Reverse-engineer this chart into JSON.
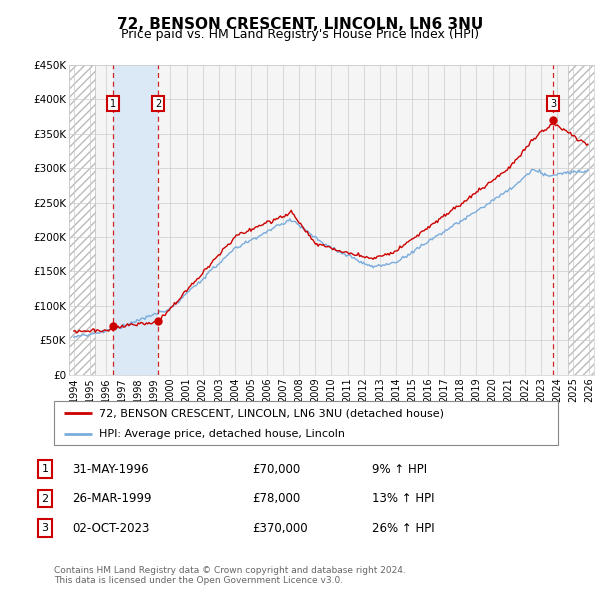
{
  "title": "72, BENSON CRESCENT, LINCOLN, LN6 3NU",
  "subtitle": "Price paid vs. HM Land Registry's House Price Index (HPI)",
  "ylim": [
    0,
    450000
  ],
  "yticks": [
    0,
    50000,
    100000,
    150000,
    200000,
    250000,
    300000,
    350000,
    400000,
    450000
  ],
  "ytick_labels": [
    "£0",
    "£50K",
    "£100K",
    "£150K",
    "£200K",
    "£250K",
    "£300K",
    "£350K",
    "£400K",
    "£450K"
  ],
  "xlim_start": 1993.7,
  "xlim_end": 2026.3,
  "xticks": [
    1994,
    1995,
    1996,
    1997,
    1998,
    1999,
    2000,
    2001,
    2002,
    2003,
    2004,
    2005,
    2006,
    2007,
    2008,
    2009,
    2010,
    2011,
    2012,
    2013,
    2014,
    2015,
    2016,
    2017,
    2018,
    2019,
    2020,
    2021,
    2022,
    2023,
    2024,
    2025,
    2026
  ],
  "hatch_left_end": 1995.3,
  "hatch_right_start": 2024.7,
  "sale1_x": 1996.42,
  "sale1_y": 70000,
  "sale1_label": "1",
  "sale2_x": 1999.23,
  "sale2_y": 78000,
  "sale2_label": "2",
  "sale3_x": 2023.75,
  "sale3_y": 370000,
  "sale3_label": "3",
  "property_color": "#cc0000",
  "hpi_color": "#7aacdc",
  "background_color": "#ffffff",
  "plot_bg_color": "#f5f5f5",
  "grid_color": "#cccccc",
  "shade_color": "#dbe8f5",
  "legend1_label": "72, BENSON CRESCENT, LINCOLN, LN6 3NU (detached house)",
  "legend2_label": "HPI: Average price, detached house, Lincoln",
  "table_rows": [
    {
      "num": "1",
      "date": "31-MAY-1996",
      "price": "£70,000",
      "pct": "9% ↑ HPI"
    },
    {
      "num": "2",
      "date": "26-MAR-1999",
      "price": "£78,000",
      "pct": "13% ↑ HPI"
    },
    {
      "num": "3",
      "date": "02-OCT-2023",
      "price": "£370,000",
      "pct": "26% ↑ HPI"
    }
  ],
  "footer": "Contains HM Land Registry data © Crown copyright and database right 2024.\nThis data is licensed under the Open Government Licence v3.0.",
  "title_fontsize": 11,
  "subtitle_fontsize": 9,
  "tick_fontsize": 7.5
}
